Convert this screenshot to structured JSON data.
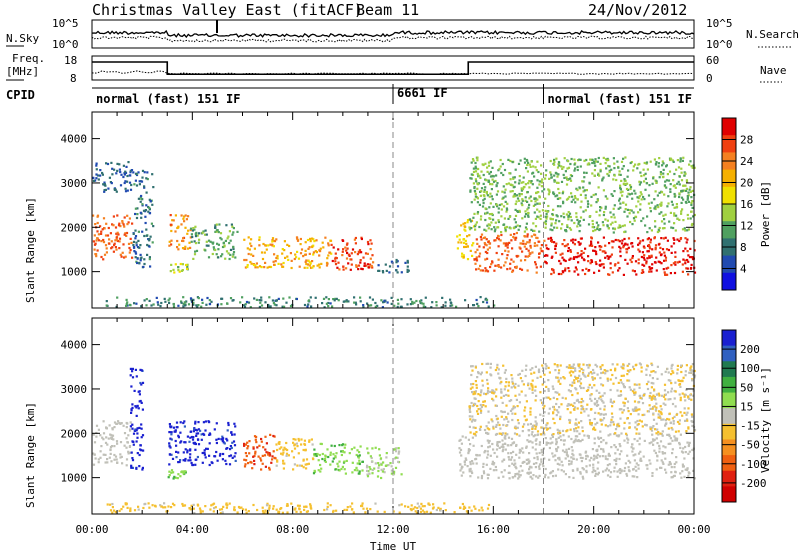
{
  "header": {
    "radar": "Christmas Valley East (fitACF)",
    "beam": "Beam 11",
    "date": "24/Nov/2012"
  },
  "noise_panel": {
    "left_label": "N.Sky",
    "right_label": "N.Search",
    "left_ticks": [
      "10^5",
      "10^0"
    ],
    "right_ticks": [
      "10^5",
      "10^0"
    ]
  },
  "freq_panel": {
    "left_label_1": "Freq.",
    "left_label_2": "[MHz]",
    "right_label": "Nave",
    "left_ticks": [
      "18",
      "8"
    ],
    "right_ticks": [
      "60",
      "0"
    ]
  },
  "cpid_panel": {
    "label": "CPID",
    "segments": [
      {
        "label": "normal (fast) 151 IF",
        "start_hour": 0
      },
      {
        "label": "6661 IF",
        "start_hour": 12
      },
      {
        "label": "normal (fast) 151 IF",
        "start_hour": 18
      }
    ]
  },
  "power_panel": {
    "ylabel": "Slant Range [km]",
    "colorbar_label": "Power [dB]",
    "colorbar_ticks": [
      "28",
      "24",
      "20",
      "16",
      "12",
      "8",
      "4"
    ],
    "colorbar_colors": [
      "#e00000",
      "#f04010",
      "#f58020",
      "#f5b000",
      "#f0e000",
      "#a0d040",
      "#50a060",
      "#307070",
      "#204ab0",
      "#1010e0"
    ]
  },
  "velocity_panel": {
    "ylabel": "Slant Range [km]",
    "colorbar_label": "Velocity [m s⁻¹]",
    "colorbar_ticks": [
      "200",
      "100",
      "50",
      "15",
      "-15",
      "-50",
      "-100",
      "-200"
    ],
    "colorbar_colors": [
      "#1a20d0",
      "#3060c0",
      "#207a50",
      "#40b040",
      "#90dd50",
      "#c0c0b8",
      "#f5c030",
      "#f59020",
      "#f06010",
      "#e02010",
      "#d00000"
    ]
  },
  "x_axis": {
    "label": "Time UT",
    "ticks": [
      "00:00",
      "04:00",
      "08:00",
      "12:00",
      "16:00",
      "20:00",
      "00:00"
    ]
  },
  "chart_data": {
    "type": "heatmap",
    "title": "Christmas Valley East (fitACF)",
    "x_range_hours": [
      0,
      24
    ],
    "y_range_km": [
      180,
      4600
    ],
    "y_ticks": [
      1000,
      2000,
      3000,
      4000
    ],
    "power_scale_db": [
      0,
      30
    ],
    "velocity_scale": [
      -250,
      250
    ],
    "power_regions": [
      {
        "t0": 0.0,
        "t1": 1.6,
        "r0": 1300,
        "r1": 2300,
        "db": 24
      },
      {
        "t0": 0.0,
        "t1": 1.6,
        "r0": 2800,
        "r1": 3500,
        "db": 6
      },
      {
        "t0": 1.6,
        "t1": 2.4,
        "r0": 1100,
        "r1": 3300,
        "db": 7
      },
      {
        "t0": 3.0,
        "t1": 3.9,
        "r0": 1500,
        "r1": 2300,
        "db": 22
      },
      {
        "t0": 3.0,
        "t1": 3.8,
        "r0": 1000,
        "r1": 1200,
        "db": 14
      },
      {
        "t0": 3.9,
        "t1": 5.8,
        "r0": 1300,
        "r1": 2100,
        "db": 11
      },
      {
        "t0": 6.0,
        "t1": 9.5,
        "r0": 1100,
        "r1": 1800,
        "db": 20
      },
      {
        "t0": 9.5,
        "t1": 11.2,
        "r0": 1050,
        "r1": 1800,
        "db": 26
      },
      {
        "t0": 11.2,
        "t1": 12.6,
        "r0": 1000,
        "r1": 1300,
        "db": 6
      },
      {
        "t0": 14.5,
        "t1": 15.2,
        "r0": 1300,
        "r1": 2200,
        "db": 18
      },
      {
        "t0": 15.2,
        "t1": 18.0,
        "r0": 1000,
        "r1": 1900,
        "db": 24
      },
      {
        "t0": 18.0,
        "t1": 24.0,
        "r0": 950,
        "r1": 1800,
        "db": 28
      },
      {
        "t0": 15.0,
        "t1": 24.0,
        "r0": 1900,
        "r1": 3600,
        "db": 12
      },
      {
        "t0": 0.5,
        "t1": 16.0,
        "r0": 220,
        "r1": 450,
        "db": 8
      }
    ],
    "velocity_regions": [
      {
        "t0": 0.0,
        "t1": 1.5,
        "r0": 1300,
        "r1": 2300,
        "v": 0
      },
      {
        "t0": 1.5,
        "t1": 2.0,
        "r0": 1200,
        "r1": 3500,
        "v": 220
      },
      {
        "t0": 3.0,
        "t1": 5.7,
        "r0": 1300,
        "r1": 2300,
        "v": 220
      },
      {
        "t0": 3.0,
        "t1": 3.7,
        "r0": 1000,
        "r1": 1200,
        "v": 60
      },
      {
        "t0": 6.0,
        "t1": 7.3,
        "r0": 1200,
        "r1": 2000,
        "v": -150
      },
      {
        "t0": 7.3,
        "t1": 8.8,
        "r0": 1200,
        "r1": 1900,
        "v": -40
      },
      {
        "t0": 8.8,
        "t1": 10.8,
        "r0": 1100,
        "r1": 1800,
        "v": 60
      },
      {
        "t0": 10.8,
        "t1": 12.3,
        "r0": 1000,
        "r1": 1700,
        "v": 25
      },
      {
        "t0": 14.6,
        "t1": 24.0,
        "r0": 1000,
        "r1": 2000,
        "v": 0
      },
      {
        "t0": 15.0,
        "t1": 24.0,
        "r0": 2000,
        "r1": 3600,
        "v": -20
      },
      {
        "t0": 0.5,
        "t1": 16.0,
        "r0": 220,
        "r1": 450,
        "v": -40
      }
    ]
  }
}
